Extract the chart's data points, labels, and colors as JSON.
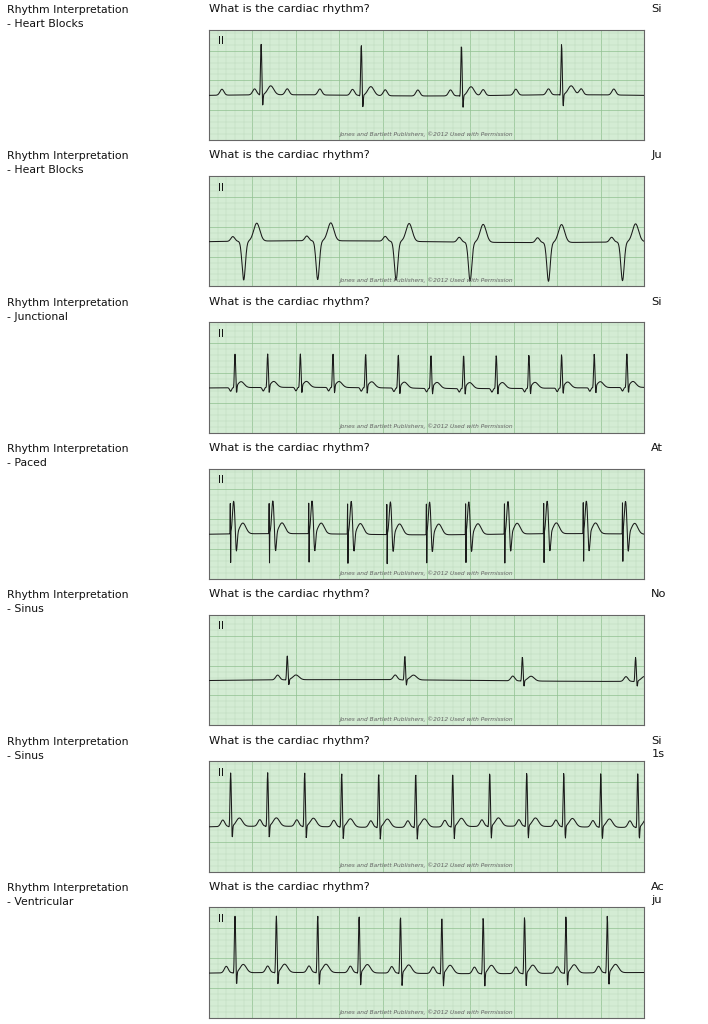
{
  "bg_color": "#ffffff",
  "grid_bg": "#d4ecd4",
  "grid_minor_color": "#b8d8b8",
  "grid_major_color": "#90c090",
  "ecg_color": "#1a1a1a",
  "border_color": "#666666",
  "text_color": "#111111",
  "rows": [
    {
      "left_text": "Rhythm Interpretation\n- Heart Blocks",
      "question": "What is the cardiac rhythm?",
      "right_text": "Si",
      "ecg_type": "heart_block_1"
    },
    {
      "left_text": "Rhythm Interpretation\n- Heart Blocks",
      "question": "What is the cardiac rhythm?",
      "right_text": "Ju",
      "ecg_type": "heart_block_2"
    },
    {
      "left_text": "Rhythm Interpretation\n- Junctional",
      "question": "What is the cardiac rhythm?",
      "right_text": "Si",
      "ecg_type": "junctional"
    },
    {
      "left_text": "Rhythm Interpretation\n- Paced",
      "question": "What is the cardiac rhythm?",
      "right_text": "At",
      "ecg_type": "paced"
    },
    {
      "left_text": "Rhythm Interpretation\n- Sinus",
      "question": "What is the cardiac rhythm?",
      "right_text": "No",
      "ecg_type": "sinus_slow"
    },
    {
      "left_text": "Rhythm Interpretation\n- Sinus",
      "question": "What is the cardiac rhythm?",
      "right_text": "Si\n1s",
      "ecg_type": "sinus_normal"
    },
    {
      "left_text": "Rhythm Interpretation\n- Ventricular",
      "question": "What is the cardiac rhythm?",
      "right_text": "Ac\nju",
      "ecg_type": "ventricular"
    }
  ],
  "copyright_text": "Jones and Bartlett Publishers, ©2012 Used with Permission",
  "lead_label": "II"
}
